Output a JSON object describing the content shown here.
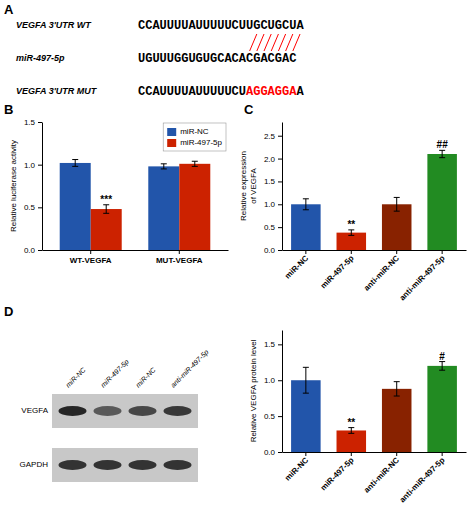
{
  "chart_data": [
    {
      "type": "sequence",
      "title": "A",
      "color": "red",
      "series": [
        {
          "name": "VEGFA 3'UTR WT",
          "segments": [
            {
              "text": "CCAUUUUAUUUUUCUUGCUGCUA",
              "color": "black"
            }
          ]
        },
        {
          "name": "miR-497-5p",
          "segments": [
            {
              "text": "UGUUUGGUGUGCACACGACGAC",
              "color": "black"
            }
          ]
        },
        {
          "name": "VEGFA 3'UTR MUT",
          "segments": [
            {
              "text": "CCAUUUUAUUUUUCU",
              "color": "black"
            },
            {
              "text": "AGGAGGA",
              "color": "red"
            },
            {
              "text": "A",
              "color": "black"
            }
          ]
        }
      ],
      "links": [
        {
          "from": 16,
          "to": 15
        },
        {
          "from": 17,
          "to": 16
        },
        {
          "from": 18,
          "to": 17
        },
        {
          "from": 19,
          "to": 18
        },
        {
          "from": 20,
          "to": 19
        },
        {
          "from": 21,
          "to": 20
        },
        {
          "from": 22,
          "to": 21
        }
      ]
    },
    {
      "type": "bar",
      "title": "B",
      "categories": [
        "WT-VEGFA",
        "MUT-VEGFA"
      ],
      "series": [
        {
          "name": "miR-NC",
          "color": "#2255AA",
          "values": [
            1.02,
            0.98
          ],
          "errors": [
            0.04,
            0.03
          ]
        },
        {
          "name": "miR-497-5p",
          "color": "#CC2200",
          "values": [
            0.48,
            1.01
          ],
          "errors": [
            0.05,
            0.03
          ]
        }
      ],
      "ylabel": "Relative luciferase activity",
      "ylim": [
        0.0,
        1.5
      ],
      "yticks": [
        {
          "value": 0.0,
          "label": "0.0"
        },
        0.5,
        {
          "value": 1.0,
          "label": "1.0"
        },
        1.5
      ],
      "legend": "upper right",
      "annotations": [
        {
          "text": "***",
          "index": 0,
          "series": 1
        }
      ]
    },
    {
      "type": "bar",
      "title": "C",
      "categories": [
        "miR-NC",
        "miR-497-5p",
        "anti-miR-NC",
        "anti-miR-497-5p"
      ],
      "values": [
        1.0,
        0.38,
        1.0,
        2.1
      ],
      "errors": [
        0.12,
        0.06,
        0.15,
        0.08
      ],
      "colors": [
        "#2255AA",
        "#CC2200",
        "#882200",
        "#228B22"
      ],
      "ylabel": "Relative expression\nof VEGFA",
      "ylim": [
        0.0,
        2.8
      ],
      "yticks": [
        {
          "value": 0.0,
          "label": "0.0"
        },
        0.5,
        {
          "value": 1.0,
          "label": "1.0"
        },
        1.5,
        {
          "value": 2.0,
          "label": "2.0"
        },
        2.5
      ],
      "annotations": [
        {
          "text": "**",
          "index": 1
        },
        {
          "text": "##",
          "index": 3
        }
      ]
    },
    {
      "type": "blot",
      "title": "D",
      "color": "#c8c8c8",
      "categories": [
        "miR-NC",
        "miR-497-5p",
        "miR-NC",
        "anti-miR-497-5p"
      ],
      "series": [
        {
          "name": "VEGFA",
          "values": [
            0.15,
            0.35,
            0.28,
            0.22
          ]
        },
        {
          "name": "GAPDH",
          "values": [
            0.2,
            0.2,
            0.2,
            0.2
          ]
        }
      ]
    },
    {
      "type": "bar",
      "categories": [
        "miR-NC",
        "miR-497-5p",
        "anti-miR-NC",
        "anti-miR-497-5p"
      ],
      "values": [
        1.0,
        0.3,
        0.88,
        1.2
      ],
      "errors": [
        0.18,
        0.04,
        0.1,
        0.06
      ],
      "colors": [
        "#2255AA",
        "#CC2200",
        "#882200",
        "#228B22"
      ],
      "ylabel": "Relative VEGFA protein level",
      "ylim": [
        0.0,
        1.7
      ],
      "yticks": [
        {
          "value": 0.0,
          "label": "0.0"
        },
        0.5,
        {
          "value": 1.0,
          "label": "1.0"
        },
        1.5
      ],
      "annotations": [
        {
          "text": "**",
          "index": 1
        },
        {
          "text": "#",
          "index": 3
        }
      ]
    }
  ]
}
